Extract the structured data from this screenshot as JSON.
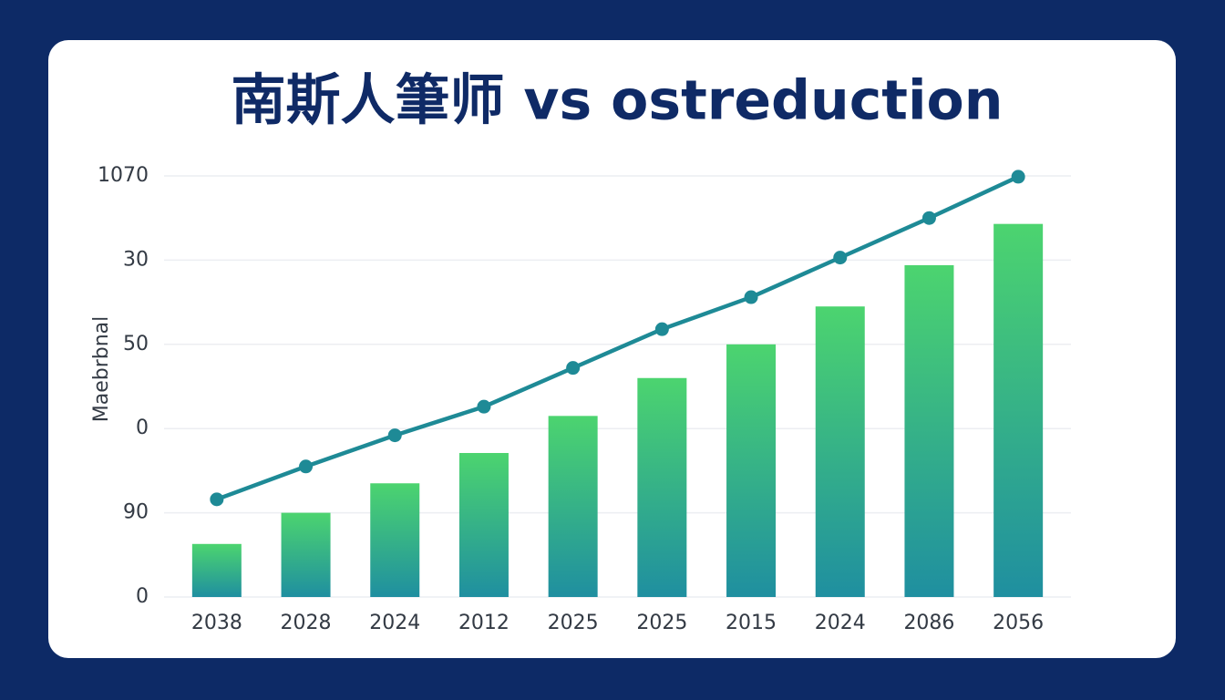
{
  "chart_data": {
    "type": "bar",
    "title": "南斯人筆师 vs ostreduction",
    "y_label": "Maebrbnal",
    "categories": [
      "2038",
      "2028",
      "2024",
      "2012",
      "2025",
      "2025",
      "2015",
      "2024",
      "2086",
      "2056"
    ],
    "series": [
      {
        "type": "bar",
        "color": [
          "#4cd46f",
          "#1f8fa0"
        ],
        "values": [
          0.63,
          1.0,
          1.35,
          1.71,
          2.15,
          2.6,
          3.0,
          3.45,
          3.94,
          4.43
        ]
      },
      {
        "type": "line",
        "color": "#1e8a96",
        "values": [
          1.16,
          1.55,
          1.92,
          2.26,
          2.72,
          3.18,
          3.56,
          4.03,
          4.5,
          4.99
        ]
      }
    ],
    "ylim": [
      0,
      5
    ],
    "yticks": [
      {
        "value": 0,
        "label": "0"
      },
      {
        "value": 1,
        "label": "90"
      },
      {
        "value": 2,
        "label": "0"
      },
      {
        "value": 3,
        "label": "50"
      },
      {
        "value": 4,
        "label": "30"
      },
      {
        "value": 5,
        "label": "1070"
      }
    ],
    "grid": true
  }
}
